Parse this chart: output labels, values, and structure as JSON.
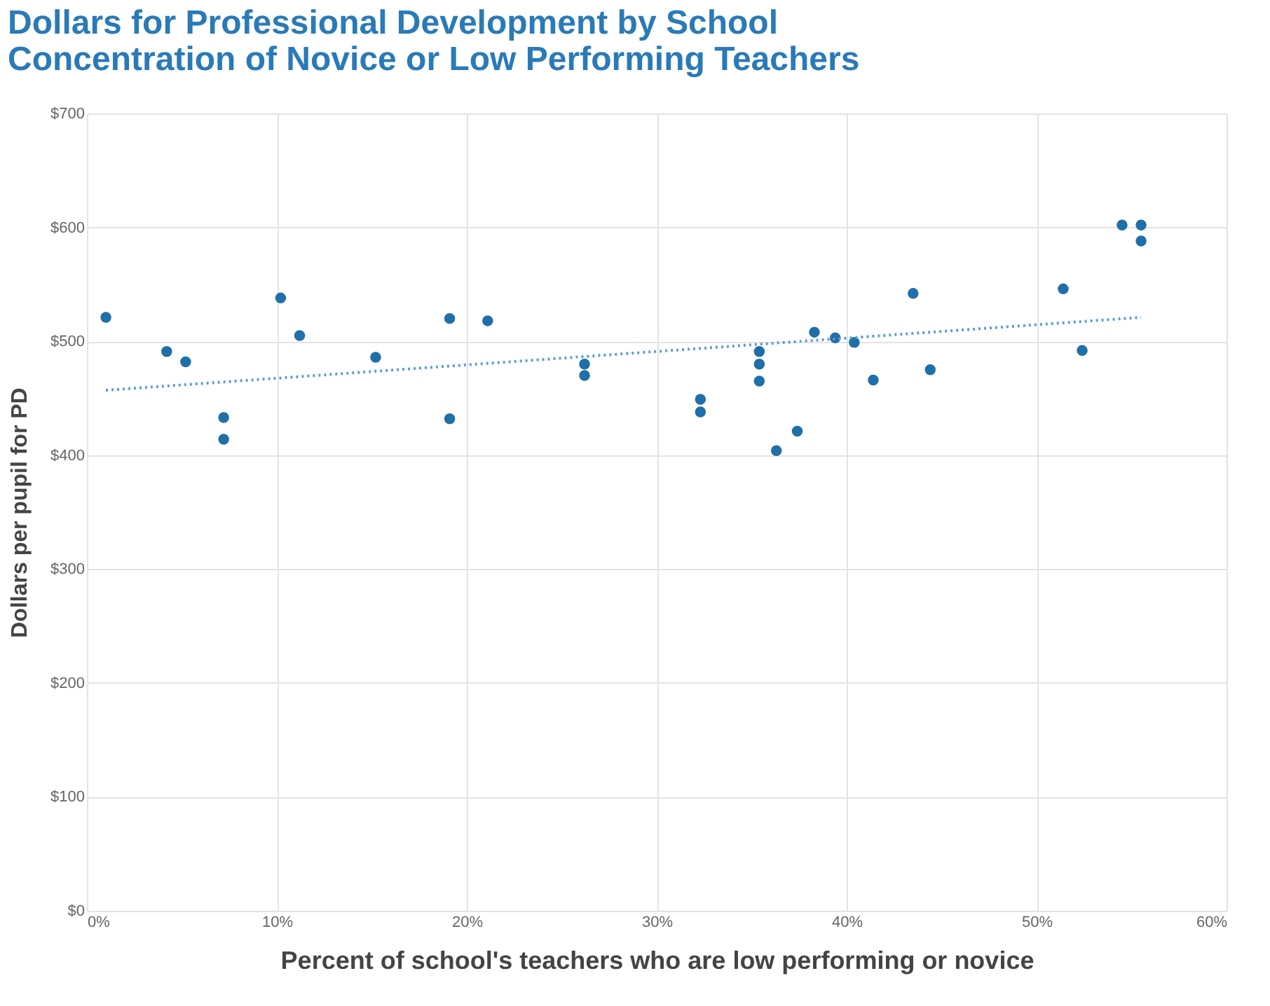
{
  "chart_data": {
    "type": "scatter",
    "title": "Dollars for Professional Development by School\nConcentration of Novice or Low Performing Teachers",
    "xlabel": "Percent of school's teachers who are low performing or novice",
    "ylabel": "Dollars per pupil for PD",
    "xlim": [
      0,
      60
    ],
    "ylim": [
      0,
      700
    ],
    "xticks": [
      {
        "value": 0,
        "label": "0%"
      },
      {
        "value": 10,
        "label": "10%"
      },
      {
        "value": 20,
        "label": "20%"
      },
      {
        "value": 30,
        "label": "30%"
      },
      {
        "value": 40,
        "label": "40%"
      },
      {
        "value": 50,
        "label": "50%"
      },
      {
        "value": 60,
        "label": "60%"
      }
    ],
    "yticks": [
      {
        "value": 0,
        "label": "$0"
      },
      {
        "value": 100,
        "label": "$100"
      },
      {
        "value": 200,
        "label": "$200"
      },
      {
        "value": 300,
        "label": "$300"
      },
      {
        "value": 400,
        "label": "$400"
      },
      {
        "value": 500,
        "label": "$500"
      },
      {
        "value": 600,
        "label": "$600"
      },
      {
        "value": 700,
        "label": "$700"
      }
    ],
    "grid": true,
    "series": [
      {
        "color": "#1f6fa8",
        "marker": "circle",
        "x": [
          1.0,
          4.2,
          5.2,
          7.2,
          7.2,
          10.2,
          11.2,
          15.2,
          19.1,
          19.1,
          21.1,
          26.2,
          26.2,
          32.3,
          32.3,
          35.4,
          35.4,
          35.4,
          36.3,
          37.4,
          38.3,
          39.4,
          40.4,
          41.4,
          43.5,
          44.4,
          51.4,
          52.4,
          54.5,
          55.5,
          55.5
        ],
        "values": [
          521,
          491,
          482,
          433,
          414,
          538,
          505,
          486,
          520,
          432,
          518,
          480,
          470,
          449,
          438,
          491,
          480,
          465,
          404,
          421,
          508,
          503,
          499,
          466,
          542,
          475,
          546,
          492,
          602,
          602,
          588
        ]
      },
      {
        "type": "line",
        "color": "#5b9fd0",
        "marker": "none",
        "line_style": "dotted",
        "x": [
          1.0,
          55.5
        ],
        "values": [
          457,
          521
        ]
      }
    ]
  }
}
